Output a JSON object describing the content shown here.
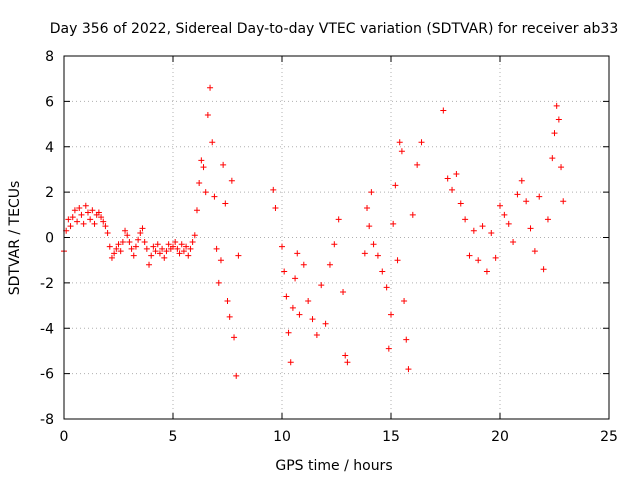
{
  "chart_data": {
    "type": "scatter",
    "title": "Day 356 of 2022, Sidereal Day-to-day VTEC variation (SDTVAR) for receiver ab33",
    "xlabel": "GPS time / hours",
    "ylabel": "SDTVAR / TECUs",
    "xlim": [
      0,
      25
    ],
    "ylim": [
      -8,
      8
    ],
    "xticks": [
      0,
      5,
      10,
      15,
      20,
      25
    ],
    "xtick_labels": [
      "0",
      "5",
      "10",
      "15",
      "20",
      "25"
    ],
    "yticks": [
      -8,
      -6,
      -4,
      -2,
      0,
      2,
      4,
      6,
      8
    ],
    "ytick_labels": [
      "-8",
      "-6",
      "-4",
      "-2",
      "0",
      "2",
      "4",
      "6",
      "8"
    ],
    "grid": true,
    "marker": "+",
    "color": "#ff0000",
    "series": [
      {
        "name": "SDTVAR",
        "x": [
          0.0,
          0.1,
          0.2,
          0.3,
          0.4,
          0.5,
          0.6,
          0.7,
          0.8,
          0.9,
          1.0,
          1.1,
          1.2,
          1.3,
          1.4,
          1.5,
          1.6,
          1.7,
          1.8,
          1.9,
          2.0,
          2.1,
          2.2,
          2.3,
          2.4,
          2.5,
          2.6,
          2.7,
          2.8,
          2.9,
          3.0,
          3.1,
          3.2,
          3.3,
          3.4,
          3.5,
          3.6,
          3.7,
          3.8,
          3.9,
          4.0,
          4.1,
          4.2,
          4.3,
          4.4,
          4.5,
          4.6,
          4.7,
          4.8,
          4.9,
          5.0,
          5.1,
          5.2,
          5.3,
          5.4,
          5.5,
          5.6,
          5.7,
          5.8,
          5.9,
          6.0,
          6.1,
          6.2,
          6.3,
          6.4,
          6.5,
          6.6,
          6.7,
          6.8,
          6.9,
          7.0,
          7.1,
          7.2,
          7.3,
          7.4,
          7.5,
          7.6,
          7.7,
          7.8,
          7.9,
          8.0,
          9.6,
          9.7,
          10.0,
          10.1,
          10.2,
          10.3,
          10.4,
          10.5,
          10.6,
          10.7,
          10.8,
          11.0,
          11.2,
          11.4,
          11.6,
          11.8,
          12.0,
          12.2,
          12.4,
          12.6,
          12.8,
          12.9,
          13.0,
          13.8,
          13.9,
          14.0,
          14.1,
          14.2,
          14.4,
          14.6,
          14.8,
          14.9,
          15.0,
          15.1,
          15.2,
          15.3,
          15.4,
          15.5,
          15.6,
          15.7,
          15.8,
          16.0,
          16.2,
          16.4,
          17.4,
          17.6,
          17.8,
          18.0,
          18.2,
          18.4,
          18.6,
          18.8,
          19.0,
          19.2,
          19.4,
          19.6,
          19.8,
          20.0,
          20.2,
          20.4,
          20.6,
          20.8,
          21.0,
          21.2,
          21.4,
          21.6,
          21.8,
          22.0,
          22.2,
          22.4,
          22.5,
          22.6,
          22.7,
          22.8,
          22.9
        ],
        "y": [
          -0.6,
          0.3,
          0.8,
          0.5,
          0.9,
          1.2,
          0.7,
          1.3,
          1.0,
          0.6,
          1.4,
          1.1,
          0.8,
          1.2,
          0.6,
          1.0,
          1.1,
          0.9,
          0.7,
          0.5,
          0.2,
          -0.4,
          -0.9,
          -0.7,
          -0.5,
          -0.3,
          -0.6,
          -0.2,
          0.3,
          0.1,
          -0.2,
          -0.5,
          -0.8,
          -0.4,
          -0.1,
          0.2,
          0.4,
          -0.2,
          -0.5,
          -1.2,
          -0.8,
          -0.4,
          -0.6,
          -0.3,
          -0.7,
          -0.5,
          -0.9,
          -0.6,
          -0.3,
          -0.5,
          -0.4,
          -0.2,
          -0.5,
          -0.7,
          -0.3,
          -0.6,
          -0.4,
          -0.8,
          -0.5,
          -0.2,
          0.1,
          1.2,
          2.4,
          3.4,
          3.1,
          2.0,
          5.4,
          6.6,
          4.2,
          1.8,
          -0.5,
          -2.0,
          -1.0,
          3.2,
          1.5,
          -2.8,
          -3.5,
          2.5,
          -4.4,
          -6.1,
          -0.8,
          2.1,
          1.3,
          -0.4,
          -1.5,
          -2.6,
          -4.2,
          -5.5,
          -3.1,
          -1.8,
          -0.7,
          -3.4,
          -1.2,
          -2.8,
          -3.6,
          -4.3,
          -2.1,
          -3.8,
          -1.2,
          -0.3,
          0.8,
          -2.4,
          -5.2,
          -5.5,
          -0.7,
          1.3,
          0.5,
          2.0,
          -0.3,
          -0.8,
          -1.5,
          -2.2,
          -4.9,
          -3.4,
          0.6,
          2.3,
          -1.0,
          4.2,
          3.8,
          -2.8,
          -4.5,
          -5.8,
          1.0,
          3.2,
          4.2,
          5.6,
          2.6,
          2.1,
          2.8,
          1.5,
          0.8,
          -0.8,
          0.3,
          -1.0,
          0.5,
          -1.5,
          0.2,
          -0.9,
          1.4,
          1.0,
          0.6,
          -0.2,
          1.9,
          2.5,
          1.6,
          0.4,
          -0.6,
          1.8,
          -1.4,
          0.8,
          3.5,
          4.6,
          5.8,
          5.2,
          3.1,
          1.6
        ]
      }
    ]
  }
}
